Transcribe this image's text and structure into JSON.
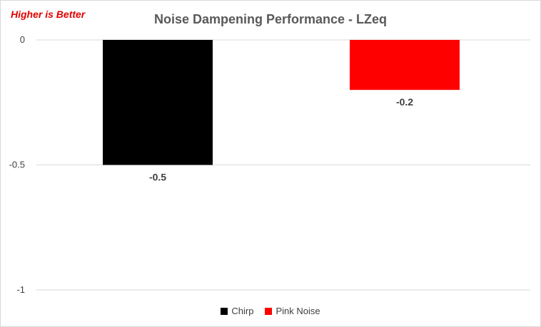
{
  "chart_data": {
    "type": "bar",
    "title": "Noise Dampening Performance - LZeq",
    "annotation": "Higher is Better",
    "xlabel": "",
    "ylabel": "",
    "ylim": [
      -1,
      0
    ],
    "yticks": [
      0,
      -0.5,
      -1
    ],
    "ytick_labels": [
      "0",
      "-0.5",
      "-1"
    ],
    "grid": true,
    "legend_position": "bottom",
    "series": [
      {
        "name": "Chirp",
        "values": [
          -0.5
        ],
        "labels": [
          "-0.5"
        ],
        "color": "#000000"
      },
      {
        "name": "Pink Noise",
        "values": [
          -0.2
        ],
        "labels": [
          "-0.2"
        ],
        "color": "#ff0000"
      }
    ]
  }
}
